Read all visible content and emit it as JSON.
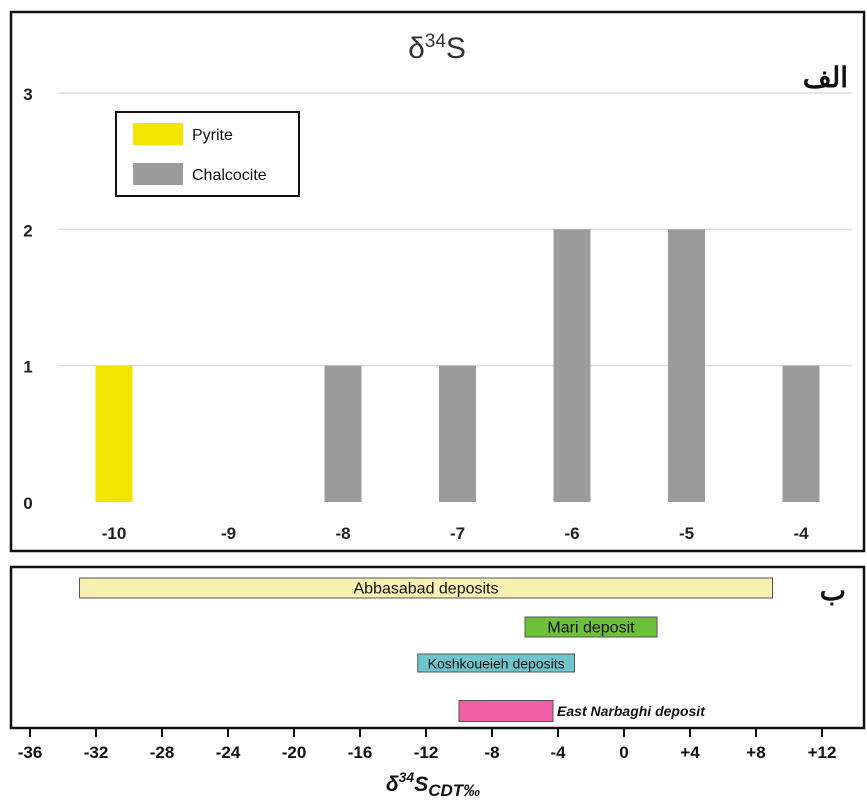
{
  "chart_data": [
    {
      "type": "bar",
      "panel_label": "الف",
      "title_base": "δ",
      "title_sup": "34",
      "title_tail": "S",
      "categories": [
        "-10",
        "-9",
        "-8",
        "-7",
        "-6",
        "-5",
        "-4"
      ],
      "series": [
        {
          "name": "Pyrite",
          "color": "#f2e600",
          "values": [
            1,
            0,
            0,
            0,
            0,
            0,
            0
          ]
        },
        {
          "name": "Chalcocite",
          "color": "#9b9b9b",
          "values": [
            0,
            0,
            1,
            1,
            2,
            2,
            1
          ]
        }
      ],
      "ylim": [
        0,
        3
      ],
      "yticks": [
        "0",
        "1",
        "2",
        "3"
      ],
      "grid": true,
      "legend_position": "top-left"
    },
    {
      "type": "range",
      "panel_label": "ب",
      "xlim": [
        -36,
        14
      ],
      "xticks": [
        {
          "value": -36,
          "label": "-36"
        },
        {
          "value": -32,
          "label": "-32"
        },
        {
          "value": -28,
          "label": "-28"
        },
        {
          "value": -24,
          "label": "-24"
        },
        {
          "value": -20,
          "label": "-20"
        },
        {
          "value": -16,
          "label": "-16"
        },
        {
          "value": -12,
          "label": "-12"
        },
        {
          "value": -8,
          "label": "-8"
        },
        {
          "value": -4,
          "label": "-4"
        },
        {
          "value": 0,
          "label": "0"
        },
        {
          "value": 4,
          "label": "+4"
        },
        {
          "value": 8,
          "label": "+8"
        },
        {
          "value": 12,
          "label": "+12"
        }
      ],
      "xlabel_base": "δ",
      "xlabel_sup": "34",
      "xlabel_main": "S",
      "xlabel_sub": "CDT",
      "xlabel_unit": "‰",
      "ranges": [
        {
          "name": "Abbasabad deposits",
          "start": -33,
          "end": 9,
          "color": "#f8f0b0",
          "label_inside": true
        },
        {
          "name": "Mari deposit",
          "start": -6,
          "end": 2,
          "color": "#6cc03a",
          "label_inside": true
        },
        {
          "name": "Koshkoueieh deposits",
          "start": -12.5,
          "end": -3,
          "color": "#6fc5cc",
          "label_inside": true
        },
        {
          "name": "East Narbaghi deposit",
          "start": -10,
          "end": -4.3,
          "color": "#ee5fa6",
          "label_inside": false
        }
      ]
    }
  ]
}
